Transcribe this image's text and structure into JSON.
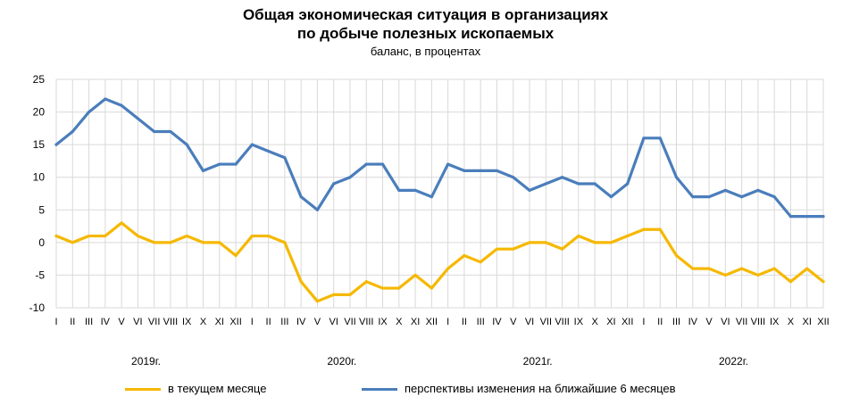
{
  "chart_data": {
    "type": "line",
    "title_line1": "Общая экономическая ситуация в организациях",
    "title_line2": "по добыче полезных ископаемых",
    "subtitle": "баланс, в процентах",
    "ylim": [
      -10,
      25
    ],
    "yticks": [
      25,
      20,
      15,
      10,
      5,
      0,
      -5,
      -10
    ],
    "grid": true,
    "legend_position": "bottom",
    "months": [
      "I",
      "II",
      "III",
      "IV",
      "V",
      "VI",
      "VII",
      "VIII",
      "IX",
      "X",
      "XI",
      "XII",
      "I",
      "II",
      "III",
      "IV",
      "V",
      "VI",
      "VII",
      "VIII",
      "IX",
      "X",
      "XI",
      "XII",
      "I",
      "II",
      "III",
      "IV",
      "V",
      "VI",
      "VII",
      "VIII",
      "IX",
      "X",
      "XI",
      "XII",
      "I",
      "II",
      "III",
      "IV",
      "V",
      "VI",
      "VII",
      "VIII",
      "IX",
      "X",
      "XI",
      "XII"
    ],
    "years": [
      "2019г.",
      "2020г.",
      "2021г.",
      "2022г."
    ],
    "series": [
      {
        "name": "в текущем месяце",
        "color": "#F5B800",
        "values": [
          1,
          0,
          1,
          1,
          3,
          1,
          0,
          0,
          1,
          0,
          0,
          -2,
          1,
          1,
          0,
          -6,
          -9,
          -8,
          -8,
          -6,
          -7,
          -7,
          -5,
          -7,
          -4,
          -2,
          -3,
          -1,
          -1,
          0,
          0,
          -1,
          1,
          0,
          0,
          1,
          2,
          2,
          -2,
          -4,
          -4,
          -5,
          -4,
          -5,
          -4,
          -6,
          -4,
          -6
        ]
      },
      {
        "name": "перспективы изменения на ближайшие 6 месяцев",
        "color": "#4A7EBB",
        "values": [
          15,
          17,
          20,
          22,
          21,
          19,
          17,
          17,
          15,
          11,
          12,
          12,
          15,
          14,
          13,
          7,
          5,
          9,
          10,
          12,
          12,
          8,
          8,
          7,
          12,
          11,
          11,
          11,
          10,
          8,
          9,
          10,
          9,
          9,
          7,
          9,
          16,
          16,
          10,
          7,
          7,
          8,
          7,
          8,
          7,
          4,
          4,
          4
        ]
      }
    ]
  }
}
